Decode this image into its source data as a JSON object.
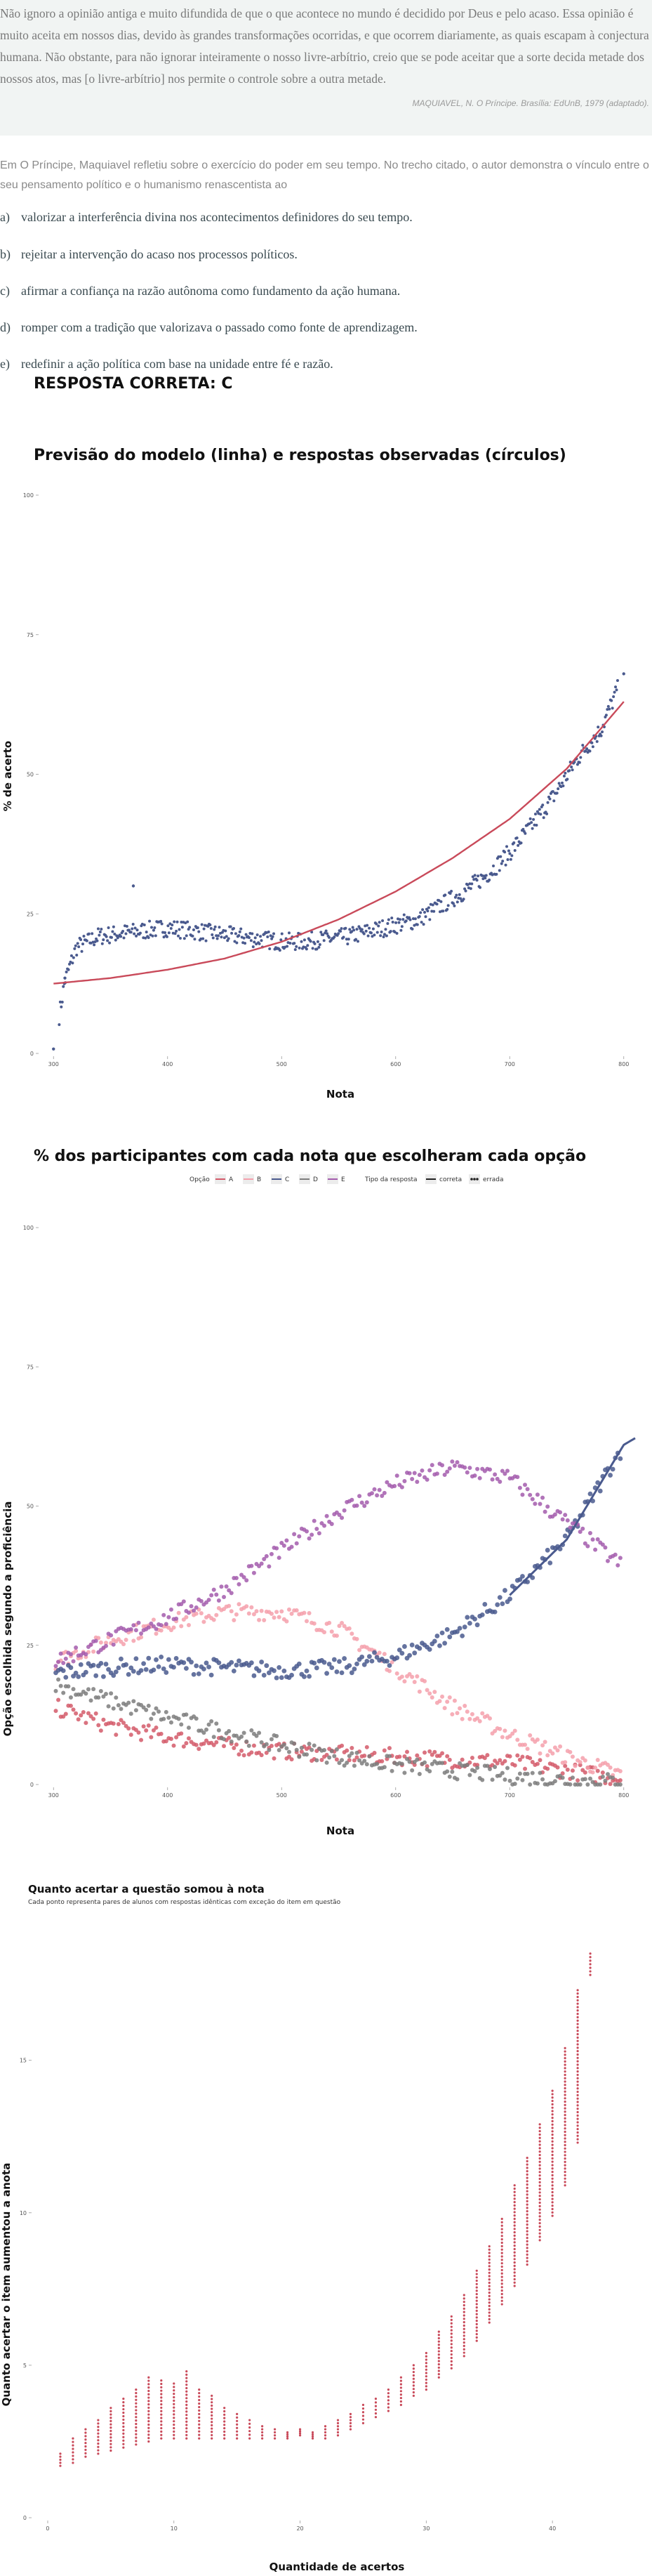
{
  "quote": {
    "text": "Não ignoro a opinião antiga e muito difundida de que o que acontece no mundo é decidido por Deus e pelo acaso. Essa opinião é muito aceita em nossos dias, devido às grandes transformações ocorridas, e que ocorrem diariamente, as quais escapam à conjectura humana. Não obstante, para não ignorar inteiramente o nosso livre-arbítrio, creio que se pode aceitar que a sorte decida metade dos nossos atos, mas [o livre-arbítrio] nos permite o controle sobre a outra metade.",
    "source": "MAQUIAVEL, N. O Príncipe. Brasília: EdUnB, 1979 (adaptado)."
  },
  "prompt": "Em O Príncipe, Maquiavel refletiu sobre o exercício do poder em seu tempo. No trecho citado, o autor demonstra o vínculo entre o seu pensamento político e o humanismo renascentista ao",
  "options": [
    {
      "letter": "a)",
      "text": "valorizar a interferência divina nos acontecimentos definidores do seu tempo."
    },
    {
      "letter": "b)",
      "text": "rejeitar a intervenção do acaso nos processos políticos."
    },
    {
      "letter": "c)",
      "text": "afirmar a confiança na razão autônoma como fundamento da ação humana."
    },
    {
      "letter": "d)",
      "text": "romper com a tradição que valorizava o passado como fonte de aprendizagem."
    },
    {
      "letter": "e)",
      "text": "redefinir a ação política com base na unidade entre fé e razão."
    }
  ],
  "answer": "RESPOSTA CORRETA: C",
  "chart_data": [
    {
      "type": "scatter",
      "title": "Previsão do modelo (linha) e respostas observadas (círculos)",
      "xlabel": "Nota",
      "ylabel": "% de acerto",
      "xlim": [
        290,
        810
      ],
      "ylim": [
        0,
        100
      ],
      "x_ticks": [
        "300",
        "400",
        "500",
        "600",
        "700",
        "800"
      ],
      "y_ticks": [
        "0",
        "25",
        "50",
        "75",
        "100"
      ],
      "grid": false,
      "colors": {
        "model": "#c94a5a",
        "observed": "#4a5a8e"
      },
      "model_curve": {
        "x": [
          300,
          350,
          400,
          450,
          500,
          550,
          600,
          650,
          700,
          750,
          800
        ],
        "y": [
          12.5,
          13.5,
          15,
          17,
          20,
          24,
          29,
          35,
          42,
          51,
          63
        ]
      },
      "observed": {
        "x": [
          300,
          310,
          320,
          340,
          360,
          380,
          400,
          420,
          440,
          460,
          480,
          500,
          520,
          540,
          560,
          580,
          600,
          620,
          640,
          660,
          680,
          700,
          720,
          740,
          760,
          780,
          800
        ],
        "y": [
          0.5,
          13,
          19,
          21,
          21.5,
          22,
          22.5,
          22,
          21.5,
          21,
          20.5,
          20,
          20,
          20.5,
          21,
          22,
          23,
          24,
          26.5,
          29,
          32,
          36,
          41,
          46.5,
          53,
          58,
          68
        ]
      }
    },
    {
      "type": "scatter",
      "title": "% dos participantes com cada nota que escolheram cada opção",
      "xlabel": "Nota",
      "ylabel": "Opção escolhida segundo a proficiência",
      "xlim": [
        290,
        810
      ],
      "ylim": [
        0,
        100
      ],
      "x_ticks": [
        "300",
        "400",
        "500",
        "600",
        "700",
        "800"
      ],
      "y_ticks": [
        "0",
        "25",
        "50",
        "75",
        "100"
      ],
      "grid": false,
      "legend": {
        "position": "top",
        "option_label": "Opção",
        "options": [
          "A",
          "B",
          "C",
          "D",
          "E"
        ],
        "type_label": "Tipo da resposta",
        "types": [
          "correta",
          "errada"
        ]
      },
      "series": [
        {
          "name": "A",
          "color": "#d45a6a",
          "x": [
            300,
            350,
            400,
            450,
            500,
            550,
            600,
            650,
            700,
            750,
            800
          ],
          "y": [
            14,
            10.5,
            8.5,
            7,
            6,
            5.5,
            5,
            4.5,
            4,
            2.5,
            1
          ]
        },
        {
          "name": "B",
          "color": "#f4a0ac",
          "x": [
            300,
            350,
            400,
            450,
            500,
            550,
            600,
            650,
            700,
            750,
            800
          ],
          "y": [
            22,
            26,
            29,
            31,
            31,
            28,
            21,
            14,
            9,
            5,
            1.5
          ]
        },
        {
          "name": "C",
          "color": "#4a5a8e",
          "x": [
            300,
            350,
            400,
            450,
            500,
            550,
            600,
            650,
            700,
            750,
            800
          ],
          "y": [
            20,
            21,
            21.5,
            21,
            20.5,
            21,
            23,
            27,
            34,
            44,
            61
          ]
        },
        {
          "name": "D",
          "color": "#7c7c7c",
          "x": [
            300,
            350,
            400,
            450,
            500,
            550,
            600,
            650,
            700,
            750,
            800
          ],
          "y": [
            18,
            15,
            12,
            9.5,
            7,
            5,
            3.5,
            2.5,
            1.5,
            0.8,
            0.5
          ]
        },
        {
          "name": "E",
          "color": "#a35cad",
          "x": [
            300,
            350,
            400,
            450,
            500,
            550,
            600,
            650,
            700,
            750,
            800
          ],
          "y": [
            22,
            26,
            30,
            35,
            42,
            49,
            54,
            57,
            55,
            47,
            39
          ]
        }
      ]
    },
    {
      "type": "scatter",
      "title": "Quanto acertar a questão somou à nota",
      "subtitle": "Cada ponto representa pares de alunos com respostas idênticas com exceção do item em questão",
      "xlabel": "Quantidade de acertos",
      "ylabel": "Quanto acertar o item aumentou a anota",
      "xlim": [
        -1,
        46
      ],
      "ylim": [
        0,
        19
      ],
      "x_ticks": [
        "0",
        "10",
        "20",
        "30",
        "40"
      ],
      "y_ticks": [
        "0",
        "5",
        "10",
        "15"
      ],
      "grid": false,
      "colors": {
        "points": "#c94a5a"
      },
      "columns": [
        {
          "x": 1,
          "low": 1.7,
          "high": 2.1
        },
        {
          "x": 2,
          "low": 1.8,
          "high": 2.6
        },
        {
          "x": 3,
          "low": 2.0,
          "high": 2.9
        },
        {
          "x": 4,
          "low": 2.1,
          "high": 3.2
        },
        {
          "x": 5,
          "low": 2.2,
          "high": 3.6
        },
        {
          "x": 6,
          "low": 2.3,
          "high": 3.9
        },
        {
          "x": 7,
          "low": 2.4,
          "high": 4.2
        },
        {
          "x": 8,
          "low": 2.5,
          "high": 4.6
        },
        {
          "x": 9,
          "low": 2.6,
          "high": 4.5
        },
        {
          "x": 10,
          "low": 2.6,
          "high": 4.4
        },
        {
          "x": 11,
          "low": 2.6,
          "high": 4.8
        },
        {
          "x": 12,
          "low": 2.6,
          "high": 4.2
        },
        {
          "x": 13,
          "low": 2.6,
          "high": 4.0
        },
        {
          "x": 14,
          "low": 2.6,
          "high": 3.6
        },
        {
          "x": 15,
          "low": 2.6,
          "high": 3.4
        },
        {
          "x": 16,
          "low": 2.6,
          "high": 3.2
        },
        {
          "x": 17,
          "low": 2.6,
          "high": 3.0
        },
        {
          "x": 18,
          "low": 2.6,
          "high": 2.9
        },
        {
          "x": 19,
          "low": 2.6,
          "high": 2.8
        },
        {
          "x": 20,
          "low": 2.7,
          "high": 2.9
        },
        {
          "x": 21,
          "low": 2.6,
          "high": 2.8
        },
        {
          "x": 22,
          "low": 2.6,
          "high": 3.0
        },
        {
          "x": 23,
          "low": 2.7,
          "high": 3.2
        },
        {
          "x": 24,
          "low": 2.9,
          "high": 3.4
        },
        {
          "x": 25,
          "low": 3.1,
          "high": 3.7
        },
        {
          "x": 26,
          "low": 3.3,
          "high": 3.9
        },
        {
          "x": 27,
          "low": 3.5,
          "high": 4.2
        },
        {
          "x": 28,
          "low": 3.7,
          "high": 4.6
        },
        {
          "x": 29,
          "low": 4.0,
          "high": 5.0
        },
        {
          "x": 30,
          "low": 4.2,
          "high": 5.4
        },
        {
          "x": 31,
          "low": 4.6,
          "high": 6.1
        },
        {
          "x": 32,
          "low": 4.9,
          "high": 6.6
        },
        {
          "x": 33,
          "low": 5.3,
          "high": 7.3
        },
        {
          "x": 34,
          "low": 5.8,
          "high": 8.1
        },
        {
          "x": 35,
          "low": 6.4,
          "high": 8.9
        },
        {
          "x": 36,
          "low": 7.0,
          "high": 9.8
        },
        {
          "x": 37,
          "low": 7.6,
          "high": 10.9
        },
        {
          "x": 38,
          "low": 8.3,
          "high": 11.8
        },
        {
          "x": 39,
          "low": 9.1,
          "high": 12.9
        },
        {
          "x": 40,
          "low": 9.9,
          "high": 14.0
        },
        {
          "x": 41,
          "low": 10.9,
          "high": 15.4
        },
        {
          "x": 42,
          "low": 12.3,
          "high": 17.3
        },
        {
          "x": 43,
          "low": 17.8,
          "high": 18.5
        }
      ]
    }
  ]
}
